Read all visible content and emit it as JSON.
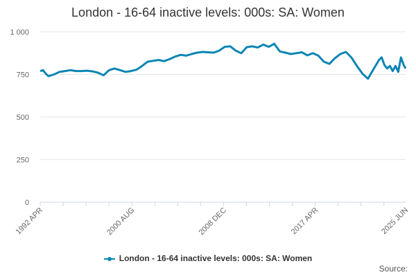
{
  "title": "London - 16-64 inactive levels: 000s: SA: Women",
  "source_label": "Source:",
  "colors": {
    "series": "#0a85b3",
    "grid": "#e6e6e6",
    "axis": "#ccd6eb"
  },
  "chart_data": {
    "type": "line",
    "title": "London - 16-64 inactive levels: 000s: SA: Women",
    "xlabel": "",
    "ylabel": "",
    "ylim": [
      0,
      1000
    ],
    "yticks": [
      0,
      250,
      500,
      750,
      1000
    ],
    "ytick_labels": [
      "0",
      "250",
      "500",
      "750",
      "1 000"
    ],
    "xlim": [
      1992.25,
      2025.42
    ],
    "xtick_labels": [
      {
        "x": 1992.25,
        "label": "1992 APR"
      },
      {
        "x": 2000.58,
        "label": "2000 AUG"
      },
      {
        "x": 2008.92,
        "label": "2008 DEC"
      },
      {
        "x": 2017.25,
        "label": "2017 APR"
      },
      {
        "x": 2025.42,
        "label": "2025 JUN"
      }
    ],
    "grid": true,
    "legend": "bottom-center",
    "series": [
      {
        "name": "London - 16-64 inactive levels: 000s: SA: Women",
        "x": [
          1992.25,
          1992.5,
          1992.75,
          1993.0,
          1993.5,
          1994.0,
          1994.5,
          1995.0,
          1995.5,
          1996.0,
          1996.5,
          1997.0,
          1997.5,
          1998.0,
          1998.5,
          1999.0,
          1999.5,
          2000.0,
          2000.5,
          2001.0,
          2001.5,
          2002.0,
          2002.5,
          2003.0,
          2003.5,
          2004.0,
          2004.5,
          2005.0,
          2005.5,
          2006.0,
          2006.5,
          2007.0,
          2007.5,
          2008.0,
          2008.5,
          2009.0,
          2009.5,
          2010.0,
          2010.5,
          2011.0,
          2011.5,
          2012.0,
          2012.5,
          2013.0,
          2013.5,
          2014.0,
          2014.5,
          2015.0,
          2015.5,
          2016.0,
          2016.5,
          2017.0,
          2017.5,
          2018.0,
          2018.5,
          2019.0,
          2019.5,
          2020.0,
          2020.5,
          2021.0,
          2021.5,
          2022.0,
          2022.5,
          2023.0,
          2023.25,
          2023.5,
          2023.75,
          2024.0,
          2024.25,
          2024.5,
          2024.75,
          2025.0,
          2025.25,
          2025.42
        ],
        "values": [
          770,
          775,
          755,
          740,
          750,
          765,
          770,
          775,
          770,
          770,
          772,
          768,
          760,
          745,
          775,
          785,
          775,
          765,
          770,
          778,
          800,
          825,
          830,
          835,
          828,
          840,
          855,
          865,
          860,
          870,
          878,
          882,
          880,
          878,
          890,
          912,
          915,
          890,
          875,
          910,
          915,
          908,
          925,
          912,
          930,
          885,
          878,
          870,
          875,
          880,
          862,
          875,
          860,
          825,
          812,
          845,
          870,
          882,
          850,
          800,
          755,
          725,
          780,
          835,
          850,
          805,
          785,
          800,
          770,
          800,
          765,
          850,
          805,
          785
        ]
      }
    ]
  }
}
